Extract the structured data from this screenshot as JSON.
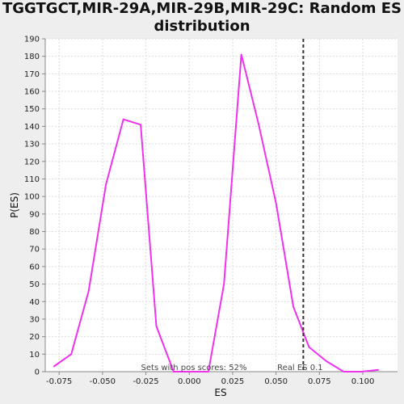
{
  "chart_data": {
    "type": "line",
    "title_line1": "TGGTGCT,MIR-29A,MIR-29B,MIR-29C: Random ES",
    "title_line2": "distribution",
    "xlabel": "ES",
    "ylabel": "P(ES)",
    "xlim": [
      -0.083,
      0.12
    ],
    "ylim": [
      0,
      190
    ],
    "xticks": [
      -0.075,
      -0.05,
      -0.025,
      0.0,
      0.025,
      0.05,
      0.075,
      0.1
    ],
    "xtick_labels": [
      "-0.075",
      "-0.050",
      "-0.025",
      "0.000",
      "0.025",
      "0.050",
      "0.075",
      "0.100"
    ],
    "yticks": [
      0,
      10,
      20,
      30,
      40,
      50,
      60,
      70,
      80,
      90,
      100,
      110,
      120,
      130,
      140,
      150,
      160,
      170,
      180,
      190
    ],
    "grid": true,
    "series": [
      {
        "color": "#ee33ee",
        "x": [
          -0.078,
          -0.068,
          -0.058,
          -0.048,
          -0.038,
          -0.028,
          -0.019,
          -0.009,
          0.001,
          0.011,
          0.02,
          0.03,
          0.04,
          0.05,
          0.06,
          0.069,
          0.079,
          0.089,
          0.099,
          0.109
        ],
        "y": [
          3,
          10,
          46,
          107,
          144,
          141,
          26,
          0,
          0,
          0,
          50,
          181,
          141,
          96,
          37,
          14,
          6,
          0,
          0,
          1
        ]
      }
    ],
    "real_es": {
      "x": 0.0657,
      "label": "Real ES 0.1",
      "color": "#333333"
    },
    "annotation": "Sets with pos scores: 52%"
  }
}
